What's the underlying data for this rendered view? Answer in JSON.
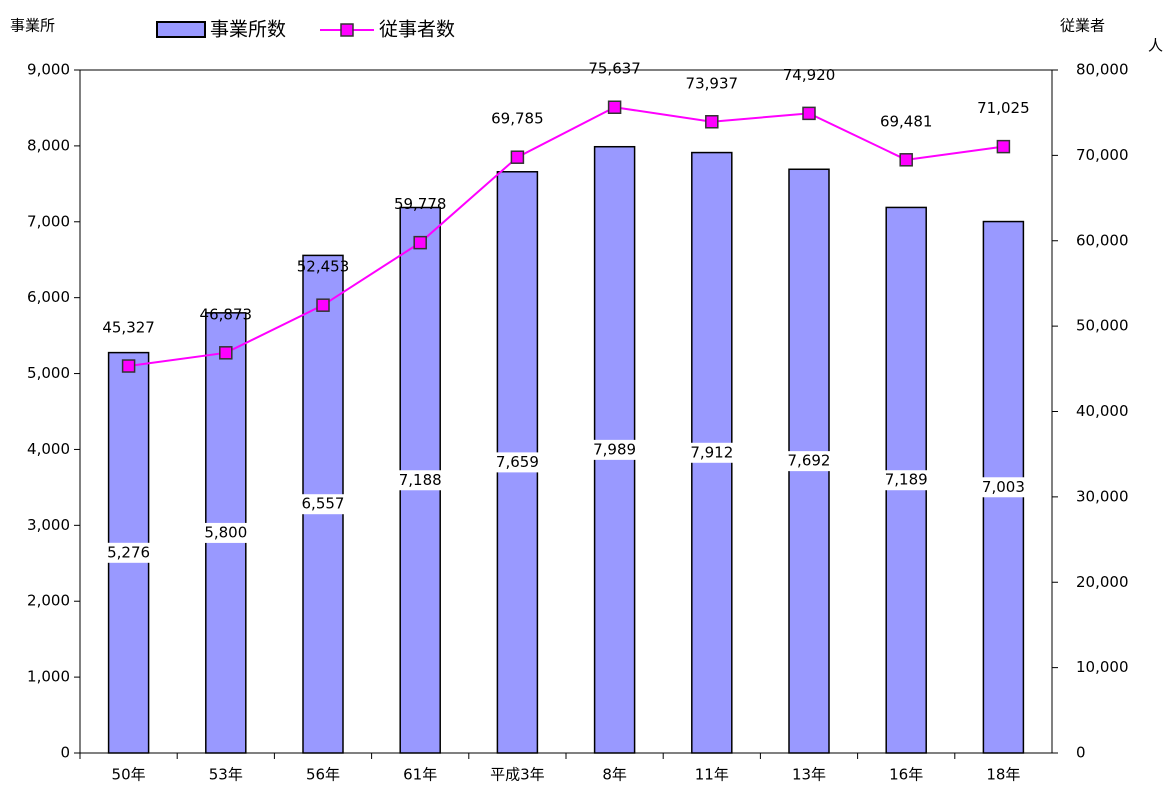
{
  "chart_data": {
    "type": "bar_line",
    "y_label": "事業所",
    "y2_label": "従業者",
    "y2_unit": "人",
    "categories": [
      "50年",
      "53年",
      "56年",
      "61年",
      "平成3年",
      "8年",
      "11年",
      "13年",
      "16年",
      "18年"
    ],
    "series": [
      {
        "name": "事業所数",
        "type": "bar",
        "color": "#9999ff",
        "axis": "y",
        "values": [
          5276,
          5800,
          6557,
          7188,
          7659,
          7989,
          7912,
          7692,
          7189,
          7003
        ],
        "value_labels": [
          "5,276",
          "5,800",
          "6,557",
          "7,188",
          "7,659",
          "7,989",
          "7,912",
          "7,692",
          "7,189",
          "7,003"
        ]
      },
      {
        "name": "従事者数",
        "type": "line",
        "color": "#ff00ff",
        "axis": "y2",
        "values": [
          45327,
          46873,
          52453,
          59778,
          69785,
          75637,
          73937,
          74920,
          69481,
          71025
        ],
        "value_labels": [
          "45,327",
          "46,873",
          "52,453",
          "59,778",
          "69,785",
          "75,637",
          "73,937",
          "74,920",
          "69,481",
          "71,025"
        ]
      }
    ],
    "ylim": [
      0,
      9000
    ],
    "yticks": [
      0,
      {
        "value": 1000,
        "label": "1,000"
      },
      {
        "value": 2000,
        "label": "2,000"
      },
      {
        "value": 3000,
        "label": "3,000"
      },
      {
        "value": 4000,
        "label": "4,000"
      },
      {
        "value": 5000,
        "label": "5,000"
      },
      {
        "value": 6000,
        "label": "6,000"
      },
      {
        "value": 7000,
        "label": "7,000"
      },
      {
        "value": 8000,
        "label": "8,000"
      },
      {
        "value": 9000,
        "label": "9,000"
      }
    ],
    "y2lim": [
      0,
      80000
    ],
    "y2ticks": [
      0,
      {
        "value": 10000,
        "label": "10,000"
      },
      {
        "value": 20000,
        "label": "20,000"
      },
      {
        "value": 30000,
        "label": "30,000"
      },
      {
        "value": 40000,
        "label": "40,000"
      },
      {
        "value": 50000,
        "label": "50,000"
      },
      {
        "value": 60000,
        "label": "60,000"
      },
      {
        "value": 70000,
        "label": "70,000"
      },
      {
        "value": 80000,
        "label": "80,000"
      }
    ],
    "legend": "top"
  }
}
